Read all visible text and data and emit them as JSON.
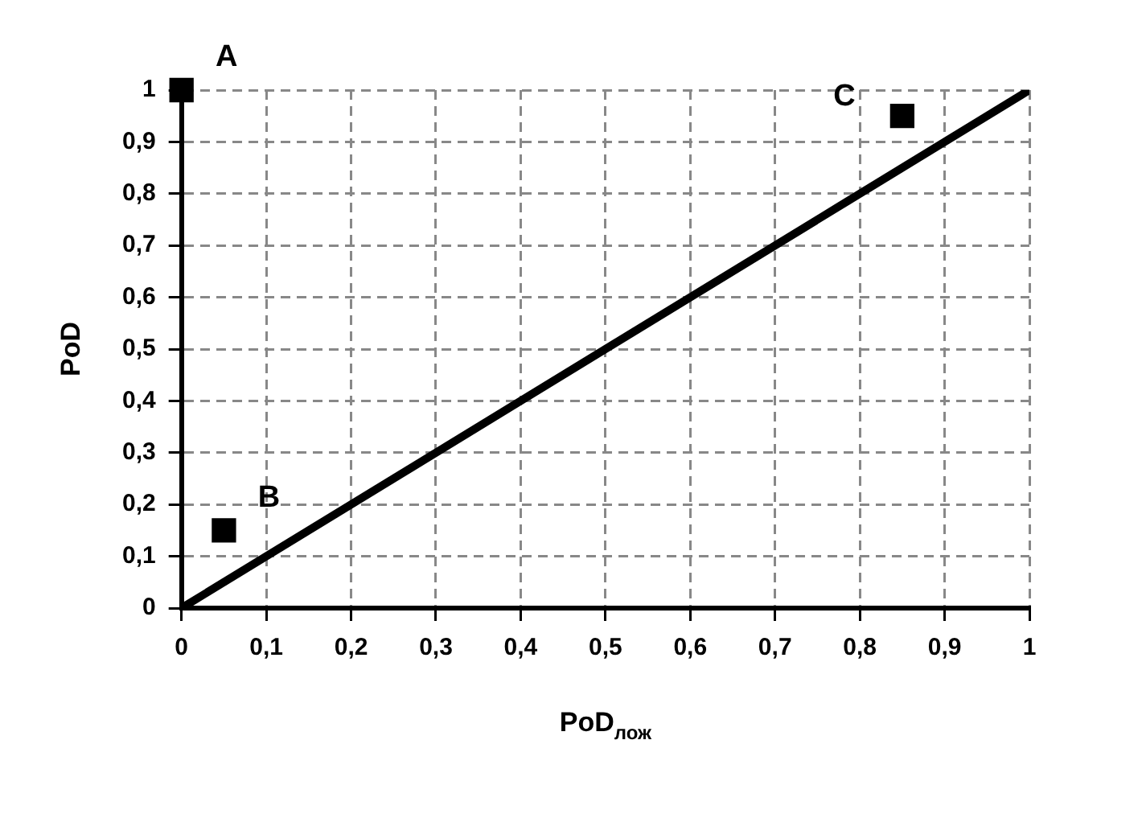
{
  "chart_data": {
    "type": "scatter",
    "xlabel": "PoD$_{лож}$",
    "ylabel": "PoD",
    "xlim": [
      0,
      1
    ],
    "ylim": [
      0,
      1
    ],
    "xticks": [
      0,
      {
        "value": 0.1,
        "label": "0,1"
      },
      {
        "value": 0.2,
        "label": "0,2"
      },
      {
        "value": 0.3,
        "label": "0,3"
      },
      {
        "value": 0.4,
        "label": "0,4"
      },
      {
        "value": 0.5,
        "label": "0,5"
      },
      {
        "value": 0.6,
        "label": "0,6"
      },
      {
        "value": 0.7,
        "label": "0,7"
      },
      {
        "value": 0.8,
        "label": "0,8"
      },
      {
        "value": 0.9,
        "label": "0,9"
      },
      1
    ],
    "yticks": [
      0,
      {
        "value": 0.1,
        "label": "0,1"
      },
      {
        "value": 0.2,
        "label": "0,2"
      },
      {
        "value": 0.3,
        "label": "0,3"
      },
      {
        "value": 0.4,
        "label": "0,4"
      },
      {
        "value": 0.5,
        "label": "0,5"
      },
      {
        "value": 0.6,
        "label": "0,6"
      },
      {
        "value": 0.7,
        "label": "0,7"
      },
      {
        "value": 0.8,
        "label": "0,8"
      },
      {
        "value": 0.9,
        "label": "0,9"
      },
      1
    ],
    "grid": true,
    "legend": false,
    "series": [
      {
        "color": "#000000",
        "marker": "square",
        "x": [
          0,
          0.05,
          0.85
        ],
        "values": [
          1,
          0.15,
          0.95
        ]
      },
      {
        "type": "line",
        "color": "#000000",
        "marker": "none",
        "line_style": "solid",
        "x": [
          0,
          1
        ],
        "values": [
          0,
          1
        ]
      }
    ],
    "annotations": [
      {
        "text": "A",
        "x": 0,
        "y": 1
      },
      {
        "text": "B",
        "x": 0.05,
        "y": 0.15
      },
      {
        "text": "C",
        "x": 0.85,
        "y": 0.95
      }
    ]
  }
}
